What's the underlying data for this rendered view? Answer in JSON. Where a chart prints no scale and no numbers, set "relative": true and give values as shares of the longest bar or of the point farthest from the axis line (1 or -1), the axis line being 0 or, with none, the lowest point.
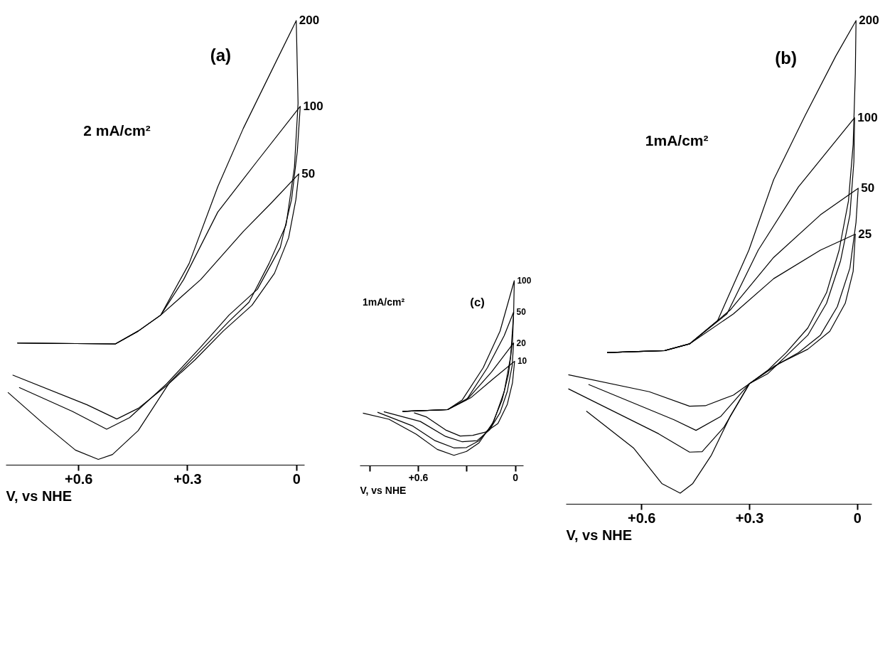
{
  "chart_data": [
    {
      "type": "line",
      "title": "(a)",
      "xlabel": "V, vs NHE",
      "relative": true,
      "xlim": [
        0.8,
        -0.022
      ],
      "xticks": [
        {
          "value": 0.6,
          "label": "+0.6"
        },
        {
          "value": 0.3,
          "label": "+0.3"
        },
        0
      ],
      "annotations": [
        "2 mA/cm²"
      ],
      "series": [
        {
          "name": "200",
          "color": "#000000",
          "x": [
            0.768,
            0.498,
            0.435,
            0.373,
            0.295,
            0.216,
            0.146,
            0.068,
            0.0,
            -0.005,
            0.005,
            0.028,
            0.075,
            0.13,
            0.185,
            0.263,
            0.349,
            0.435,
            0.506,
            0.545,
            0.608,
            0.694,
            0.794
          ],
          "values": [
            0.274,
            0.272,
            0.301,
            0.337,
            0.453,
            0.626,
            0.757,
            0.887,
            1.0,
            0.814,
            0.67,
            0.54,
            0.453,
            0.366,
            0.323,
            0.257,
            0.185,
            0.077,
            0.023,
            0.012,
            0.033,
            0.091,
            0.163
          ]
        },
        {
          "name": "100",
          "color": "#000000",
          "x": [
            0.768,
            0.498,
            0.435,
            0.373,
            0.31,
            0.216,
            0.107,
            -0.011,
            -0.003,
            0.013,
            0.044,
            0.107,
            0.185,
            0.263,
            0.357,
            0.459,
            0.522,
            0.616,
            0.763
          ],
          "values": [
            0.274,
            0.272,
            0.301,
            0.337,
            0.417,
            0.569,
            0.684,
            0.807,
            0.706,
            0.597,
            0.489,
            0.395,
            0.337,
            0.265,
            0.182,
            0.106,
            0.08,
            0.12,
            0.174
          ]
        },
        {
          "name": "50",
          "color": "#000000",
          "x": [
            0.768,
            0.498,
            0.435,
            0.373,
            0.263,
            0.146,
            0.068,
            -0.007,
            0.001,
            0.021,
            0.06,
            0.122,
            0.201,
            0.279,
            0.357,
            0.435,
            0.494,
            0.576,
            0.781
          ],
          "values": [
            0.274,
            0.272,
            0.301,
            0.337,
            0.417,
            0.525,
            0.59,
            0.655,
            0.597,
            0.511,
            0.431,
            0.359,
            0.301,
            0.236,
            0.178,
            0.127,
            0.103,
            0.135,
            0.202
          ]
        }
      ]
    },
    {
      "type": "line",
      "title": "(c)",
      "xlabel": "V, vs NHE",
      "relative": true,
      "xlim": [
        0.96,
        -0.05
      ],
      "xticks": [
        {
          "value": 0.9,
          "label": null
        },
        {
          "value": 0.6,
          "label": "+0.6"
        },
        {
          "value": 0.3,
          "label": null
        },
        0
      ],
      "annotations": [
        "1mA/cm²"
      ],
      "series": [
        {
          "name": "100",
          "color": "#000000",
          "x": [
            0.695,
            0.417,
            0.326,
            0.197,
            0.093,
            0.005,
            0.009,
            0.028,
            0.067,
            0.132,
            0.223,
            0.3,
            0.378,
            0.481,
            0.611,
            0.779,
            0.94
          ],
          "values": [
            0.293,
            0.302,
            0.355,
            0.529,
            0.727,
            1.0,
            0.82,
            0.587,
            0.401,
            0.238,
            0.122,
            0.076,
            0.055,
            0.087,
            0.169,
            0.25,
            0.283
          ]
        },
        {
          "name": "50",
          "color": "#000000",
          "x": [
            0.695,
            0.417,
            0.3,
            0.171,
            0.067,
            0.009,
            0.016,
            0.041,
            0.08,
            0.145,
            0.223,
            0.3,
            0.378,
            0.494,
            0.636,
            0.85
          ],
          "values": [
            0.293,
            0.302,
            0.355,
            0.529,
            0.703,
            0.831,
            0.669,
            0.494,
            0.355,
            0.215,
            0.134,
            0.097,
            0.095,
            0.134,
            0.215,
            0.288
          ]
        },
        {
          "name": "20",
          "color": "#000000",
          "x": [
            0.695,
            0.417,
            0.287,
            0.145,
            0.009,
            0.018,
            0.048,
            0.093,
            0.158,
            0.235,
            0.326,
            0.429,
            0.585,
            0.811
          ],
          "values": [
            0.293,
            0.302,
            0.366,
            0.506,
            0.663,
            0.541,
            0.401,
            0.285,
            0.192,
            0.134,
            0.128,
            0.157,
            0.238,
            0.291
          ]
        },
        {
          "name": "10",
          "color": "#000000",
          "x": [
            0.695,
            0.417,
            0.274,
            0.132,
            0.003,
            0.016,
            0.048,
            0.106,
            0.184,
            0.261,
            0.339,
            0.429,
            0.546,
            0.624
          ],
          "values": [
            0.293,
            0.302,
            0.366,
            0.471,
            0.564,
            0.448,
            0.331,
            0.227,
            0.18,
            0.163,
            0.159,
            0.192,
            0.262,
            0.285
          ]
        }
      ]
    },
    {
      "type": "line",
      "title": "(b)",
      "xlabel": "V, vs NHE",
      "relative": true,
      "xlim": [
        0.81,
        -0.04
      ],
      "xticks": [
        {
          "value": 0.6,
          "label": "+0.6"
        },
        {
          "value": 0.3,
          "label": "+0.3"
        },
        0
      ],
      "annotations": [
        "1mA/cm²"
      ],
      "series": [
        {
          "name": "200",
          "color": "#000000",
          "x": [
            0.695,
            0.535,
            0.466,
            0.388,
            0.301,
            0.232,
            0.145,
            0.059,
            0.003,
            0.005,
            0.011,
            0.024,
            0.05,
            0.085,
            0.137,
            0.197,
            0.249,
            0.299,
            0.353,
            0.405,
            0.457,
            0.492,
            0.543,
            0.621,
            0.753
          ],
          "values": [
            0.313,
            0.317,
            0.331,
            0.379,
            0.525,
            0.671,
            0.803,
            0.927,
            1.0,
            0.89,
            0.744,
            0.627,
            0.525,
            0.437,
            0.364,
            0.313,
            0.276,
            0.249,
            0.181,
            0.101,
            0.042,
            0.022,
            0.042,
            0.115,
            0.192
          ]
        },
        {
          "name": "100",
          "color": "#000000",
          "x": [
            0.695,
            0.535,
            0.466,
            0.362,
            0.275,
            0.163,
            0.007,
            0.009,
            0.02,
            0.046,
            0.085,
            0.137,
            0.197,
            0.249,
            0.299,
            0.37,
            0.431,
            0.466,
            0.552,
            0.803
          ],
          "values": [
            0.313,
            0.317,
            0.331,
            0.393,
            0.525,
            0.656,
            0.799,
            0.708,
            0.598,
            0.503,
            0.415,
            0.349,
            0.306,
            0.269,
            0.249,
            0.159,
            0.108,
            0.107,
            0.145,
            0.238
          ]
        },
        {
          "name": "50",
          "color": "#000000",
          "x": [
            0.695,
            0.535,
            0.466,
            0.353,
            0.232,
            0.102,
            -0.003,
            0.003,
            0.02,
            0.055,
            0.102,
            0.163,
            0.232,
            0.299,
            0.379,
            0.448,
            0.509,
            0.747
          ],
          "values": [
            0.313,
            0.317,
            0.331,
            0.401,
            0.51,
            0.598,
            0.653,
            0.583,
            0.488,
            0.408,
            0.349,
            0.313,
            0.284,
            0.249,
            0.181,
            0.152,
            0.174,
            0.247
          ]
        },
        {
          "name": "25",
          "color": "#000000",
          "x": [
            0.695,
            0.535,
            0.466,
            0.344,
            0.232,
            0.102,
            0.005,
            0.011,
            0.033,
            0.076,
            0.137,
            0.215,
            0.299,
            0.344,
            0.422,
            0.466,
            0.578,
            0.803
          ],
          "values": [
            0.313,
            0.317,
            0.331,
            0.393,
            0.466,
            0.525,
            0.558,
            0.481,
            0.415,
            0.357,
            0.32,
            0.291,
            0.249,
            0.225,
            0.203,
            0.202,
            0.232,
            0.267
          ]
        }
      ]
    }
  ]
}
